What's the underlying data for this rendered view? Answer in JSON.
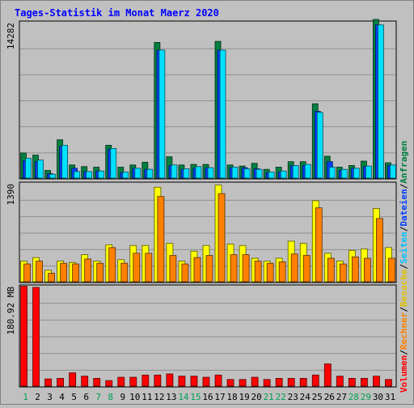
{
  "title": "Tages-Statistik im Monat Maerz 2020",
  "colors": {
    "background": "#c0c0c0",
    "title": "#0000ff",
    "anfragen": "#008040",
    "dateien": "#0040ff",
    "seiten": "#00e0ff",
    "besuche": "#ffff00",
    "rechner": "#ff8000",
    "volumen": "#ff0000",
    "weekday_label": "#008040",
    "weekend_label": "#00a050"
  },
  "right_legend": [
    {
      "text": "Anfragen",
      "color": "#008040"
    },
    {
      "text": "Dateien",
      "color": "#0040ff"
    },
    {
      "text": "Seiten",
      "color": "#00c0ff"
    },
    {
      "text": "Besuche",
      "color": "#e0c000"
    },
    {
      "text": "Rechner",
      "color": "#ff8000"
    },
    {
      "text": "Volumen",
      "color": "#ff0000"
    }
  ],
  "slash": "/",
  "chart_data": {
    "type": "bar",
    "x": [
      "1",
      "2",
      "3",
      "4",
      "5",
      "6",
      "7",
      "8",
      "9",
      "10",
      "11",
      "12",
      "13",
      "14",
      "15",
      "16",
      "17",
      "18",
      "19",
      "20",
      "21",
      "22",
      "23",
      "24",
      "25",
      "26",
      "27",
      "28",
      "29",
      "30",
      "31"
    ],
    "weekend_days": [
      "1",
      "7",
      "8",
      "14",
      "15",
      "21",
      "22",
      "28",
      "29"
    ],
    "panels": [
      {
        "ymax_label": "14282",
        "ymax": 14282,
        "series": [
          {
            "name": "Anfragen",
            "values": [
              2300,
              2100,
              700,
              3500,
              1200,
              1050,
              1000,
              3000,
              1000,
              1200,
              1450,
              12400,
              1950,
              1200,
              1250,
              1250,
              12500,
              1200,
              1100,
              1350,
              800,
              1000,
              1500,
              1500,
              6800,
              2000,
              1000,
              1150,
              1550,
              14500,
              1400
            ]
          },
          {
            "name": "Dateien",
            "values": [
              1600,
              1500,
              400,
              2900,
              900,
              600,
              650,
              2650,
              500,
              900,
              800,
              11700,
              1150,
              800,
              900,
              950,
              11700,
              950,
              950,
              850,
              500,
              550,
              1150,
              1150,
              6100,
              1500,
              700,
              900,
              1050,
              14000,
              1150
            ]
          },
          {
            "name": "Seiten",
            "values": [
              1800,
              1650,
              350,
              3000,
              600,
              600,
              650,
              2700,
              550,
              900,
              800,
              11700,
              1200,
              850,
              1050,
              950,
              11700,
              1000,
              850,
              800,
              550,
              650,
              1150,
              1250,
              6000,
              1000,
              800,
              900,
              1100,
              14000,
              1200
            ]
          }
        ]
      },
      {
        "ymax_label": "1390",
        "ymax": 1390,
        "series": [
          {
            "name": "Besuche",
            "values": [
              290,
              340,
              160,
              290,
              270,
              380,
              290,
              520,
              310,
              510,
              510,
              1330,
              540,
              290,
              430,
              510,
              1360,
              530,
              510,
              330,
              290,
              330,
              570,
              540,
              1140,
              400,
              290,
              440,
              460,
              1030,
              480
            ]
          },
          {
            "name": "Rechner",
            "values": [
              250,
              290,
              120,
              260,
              250,
              320,
              260,
              480,
              260,
              400,
              400,
              1200,
              370,
              250,
              340,
              370,
              1240,
              380,
              380,
              290,
              260,
              280,
              390,
              370,
              1040,
              330,
              250,
              350,
              330,
              890,
              330
            ]
          }
        ]
      },
      {
        "ymax_label": "180.92 MB",
        "ymax": 180.92,
        "series": [
          {
            "name": "Volumen",
            "values": [
              180,
              178,
              13,
              14,
              24,
              18,
              14,
              10,
              16,
              16,
              20,
              20,
              22,
              18,
              18,
              16,
              20,
              12,
              12,
              16,
              12,
              14,
              14,
              14,
              20,
              40,
              18,
              14,
              14,
              18,
              12
            ]
          }
        ]
      }
    ]
  }
}
